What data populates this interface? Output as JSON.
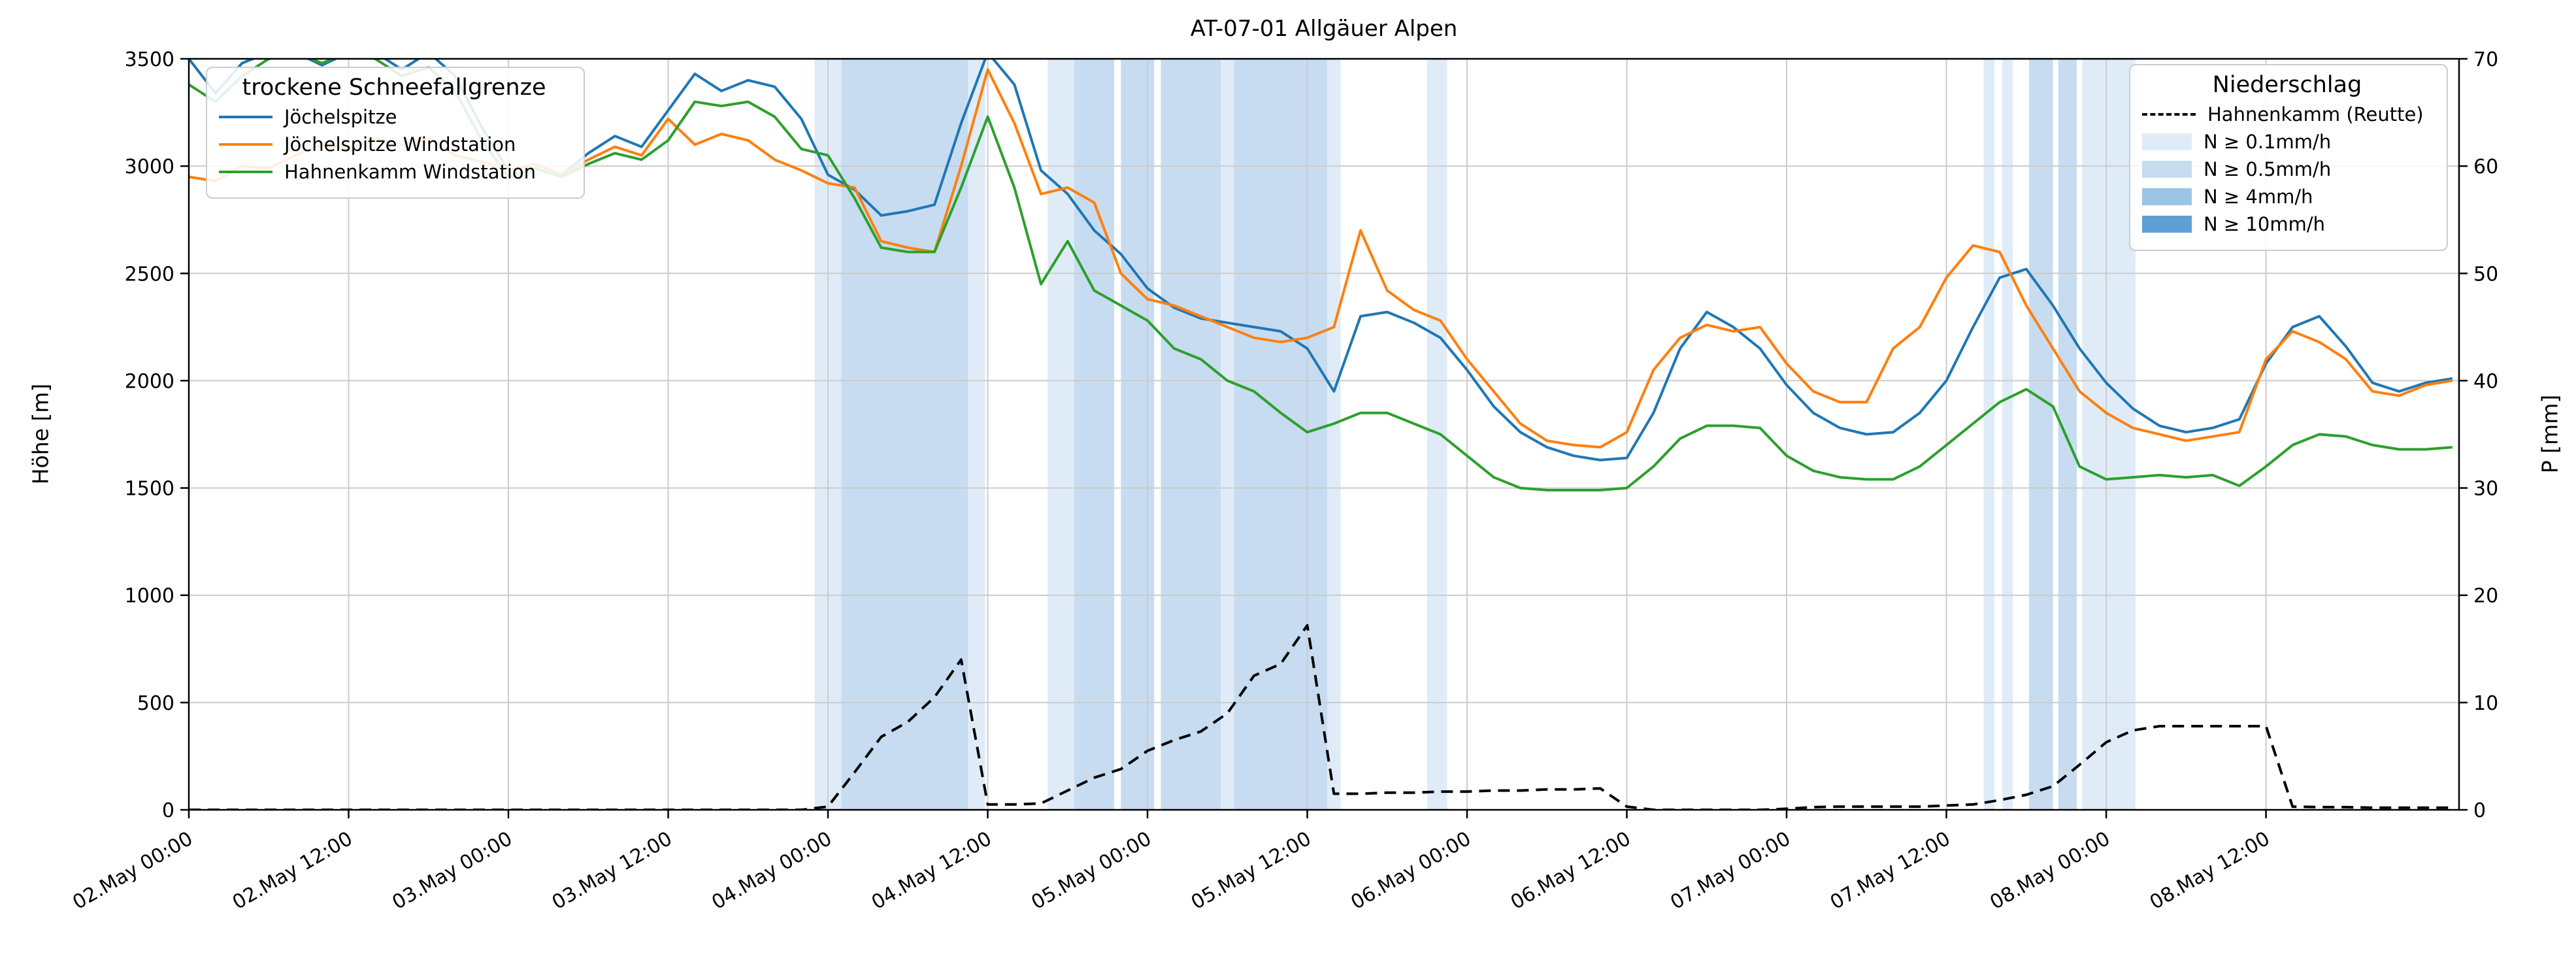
{
  "legends": {
    "snowline_title": "trockene Schneefallgrenze",
    "precip_title": "Niederschlag"
  },
  "chart_data": {
    "type": "line",
    "title": "AT-07-01 Allgäuer Alpen",
    "xlabel": "",
    "ylabel_left": "Höhe [m]",
    "ylabel_right": "P [mm]",
    "x_unit": "hours since 02.May 00:00",
    "x_range": [
      0,
      170.5
    ],
    "ylim_left": [
      0,
      3500
    ],
    "ylim_right": [
      0,
      70
    ],
    "grid": true,
    "x_ticks": {
      "hours": [
        0,
        12,
        24,
        36,
        48,
        60,
        72,
        84,
        96,
        108,
        120,
        132,
        144,
        156
      ],
      "labels": [
        "02.May 00:00",
        "02.May 12:00",
        "03.May 00:00",
        "03.May 12:00",
        "04.May 00:00",
        "04.May 12:00",
        "05.May 00:00",
        "05.May 12:00",
        "06.May 00:00",
        "06.May 12:00",
        "07.May 00:00",
        "07.May 12:00",
        "08.May 00:00",
        "08.May 12:00"
      ]
    },
    "y_ticks_left": [
      0,
      500,
      1000,
      1500,
      2000,
      2500,
      3000,
      3500
    ],
    "y_ticks_right": [
      0,
      10,
      20,
      30,
      40,
      50,
      60,
      70
    ],
    "x_hours": [
      0,
      2,
      4,
      6,
      8,
      10,
      12,
      14,
      16,
      18,
      20,
      22,
      24,
      26,
      28,
      30,
      32,
      34,
      36,
      38,
      40,
      42,
      44,
      46,
      48,
      50,
      52,
      54,
      56,
      58,
      60,
      62,
      64,
      66,
      68,
      70,
      72,
      74,
      76,
      78,
      80,
      82,
      84,
      86,
      88,
      90,
      92,
      94,
      96,
      98,
      100,
      102,
      104,
      106,
      108,
      110,
      112,
      114,
      116,
      118,
      120,
      122,
      124,
      126,
      128,
      130,
      132,
      134,
      136,
      138,
      140,
      142,
      144,
      146,
      148,
      150,
      152,
      154,
      156,
      158,
      160,
      162,
      164,
      166,
      168,
      170
    ],
    "series": [
      {
        "name": "Jöchelspitze",
        "color": "#1f77b4",
        "axis": "left",
        "style": "solid",
        "values": [
          3500,
          3340,
          3480,
          3530,
          3530,
          3470,
          3530,
          3530,
          3450,
          3530,
          3420,
          3180,
          2980,
          3010,
          2960,
          3060,
          3140,
          3090,
          3260,
          3430,
          3350,
          3400,
          3370,
          3220,
          2960,
          2890,
          2770,
          2790,
          2820,
          3200,
          3530,
          3380,
          2980,
          2870,
          2700,
          2590,
          2430,
          2340,
          2290,
          2270,
          2250,
          2230,
          2150,
          1950,
          2300,
          2320,
          2270,
          2200,
          2050,
          1880,
          1760,
          1690,
          1650,
          1630,
          1640,
          1850,
          2150,
          2320,
          2250,
          2150,
          1980,
          1850,
          1780,
          1750,
          1760,
          1850,
          2000,
          2250,
          2480,
          2520,
          2350,
          2150,
          1990,
          1870,
          1790,
          1760,
          1780,
          1820,
          2080,
          2250,
          2300,
          2160,
          1990,
          1950,
          1990,
          2010
        ]
      },
      {
        "name": "Jöchelspitze Windstation",
        "color": "#ff7f0e",
        "axis": "left",
        "style": "solid",
        "values": [
          2950,
          2930,
          3000,
          2990,
          3050,
          3100,
          3080,
          3130,
          3100,
          3130,
          3050,
          3020,
          2980,
          3010,
          2960,
          3030,
          3090,
          3050,
          3220,
          3100,
          3150,
          3120,
          3030,
          2980,
          2920,
          2900,
          2650,
          2620,
          2600,
          3000,
          3450,
          3200,
          2870,
          2900,
          2830,
          2500,
          2380,
          2350,
          2300,
          2250,
          2200,
          2180,
          2200,
          2250,
          2700,
          2420,
          2330,
          2280,
          2100,
          1950,
          1800,
          1720,
          1700,
          1690,
          1760,
          2050,
          2200,
          2260,
          2230,
          2250,
          2080,
          1950,
          1900,
          1900,
          2150,
          2250,
          2480,
          2630,
          2600,
          2350,
          2150,
          1950,
          1850,
          1780,
          1750,
          1720,
          1740,
          1760,
          2100,
          2230,
          2180,
          2100,
          1950,
          1930,
          1980,
          2000
        ]
      },
      {
        "name": "Hahnenkamm Windstation",
        "color": "#2ca02c",
        "axis": "left",
        "style": "solid",
        "values": [
          3380,
          3300,
          3420,
          3500,
          3530,
          3480,
          3530,
          3500,
          3420,
          3460,
          3350,
          3120,
          2950,
          2990,
          2950,
          3010,
          3060,
          3030,
          3120,
          3300,
          3280,
          3300,
          3230,
          3080,
          3050,
          2850,
          2620,
          2600,
          2600,
          2900,
          3230,
          2900,
          2450,
          2650,
          2420,
          2350,
          2280,
          2150,
          2100,
          2000,
          1950,
          1850,
          1760,
          1800,
          1850,
          1850,
          1800,
          1750,
          1650,
          1550,
          1500,
          1490,
          1490,
          1490,
          1500,
          1600,
          1730,
          1790,
          1790,
          1780,
          1650,
          1580,
          1550,
          1540,
          1540,
          1600,
          1700,
          1800,
          1900,
          1960,
          1880,
          1600,
          1540,
          1550,
          1560,
          1550,
          1560,
          1510,
          1600,
          1700,
          1750,
          1740,
          1700,
          1680,
          1680,
          1690
        ]
      },
      {
        "name": "Hahnenkamm (Reutte)",
        "color": "#000000",
        "axis": "right",
        "style": "dashed",
        "values": [
          0,
          0,
          0,
          0,
          0,
          0,
          0,
          0,
          0,
          0,
          0,
          0,
          0,
          0,
          0,
          0,
          0,
          0,
          0,
          0,
          0,
          0,
          0,
          0,
          0.3,
          3.5,
          6.8,
          8.2,
          10.5,
          14.0,
          0.5,
          0.5,
          0.6,
          1.8,
          3.0,
          3.8,
          5.5,
          6.5,
          7.3,
          9.0,
          12.5,
          13.6,
          17.2,
          1.5,
          1.5,
          1.6,
          1.6,
          1.7,
          1.7,
          1.8,
          1.8,
          1.9,
          1.9,
          2.0,
          0.3,
          0.0,
          0.0,
          0.0,
          0.0,
          0.0,
          0.1,
          0.25,
          0.3,
          0.3,
          0.3,
          0.3,
          0.4,
          0.5,
          0.9,
          1.4,
          2.2,
          4.2,
          6.3,
          7.4,
          7.8,
          7.8,
          7.8,
          7.8,
          7.8,
          0.3,
          0.25,
          0.25,
          0.2,
          0.2,
          0.2,
          0.2
        ]
      }
    ],
    "band_levels": [
      {
        "label": "N ≥ 0.1mm/h",
        "color": "#dfecf8"
      },
      {
        "label": "N ≥ 0.5mm/h",
        "color": "#c7dcf0"
      },
      {
        "label": "N ≥ 4mm/h",
        "color": "#9cc4e4"
      },
      {
        "label": "N ≥ 10mm/h",
        "color": "#5f9fd4"
      }
    ],
    "precip_bands": [
      {
        "from": 47,
        "to": 49,
        "level": 0
      },
      {
        "from": 49,
        "to": 58.5,
        "level": 1
      },
      {
        "from": 58.5,
        "to": 59.8,
        "level": 0
      },
      {
        "from": 64.5,
        "to": 66.5,
        "level": 0
      },
      {
        "from": 66.5,
        "to": 69.5,
        "level": 1
      },
      {
        "from": 70,
        "to": 72.5,
        "level": 1
      },
      {
        "from": 73,
        "to": 77.5,
        "level": 1
      },
      {
        "from": 77.5,
        "to": 78.5,
        "level": 0
      },
      {
        "from": 78.5,
        "to": 85.5,
        "level": 1
      },
      {
        "from": 85.5,
        "to": 86.5,
        "level": 0
      },
      {
        "from": 93,
        "to": 94.5,
        "level": 0
      },
      {
        "from": 134.8,
        "to": 135.6,
        "level": 0
      },
      {
        "from": 136.2,
        "to": 137,
        "level": 0
      },
      {
        "from": 138.2,
        "to": 140,
        "level": 1
      },
      {
        "from": 140.4,
        "to": 141.8,
        "level": 1
      },
      {
        "from": 142.2,
        "to": 146.2,
        "level": 0
      }
    ]
  }
}
